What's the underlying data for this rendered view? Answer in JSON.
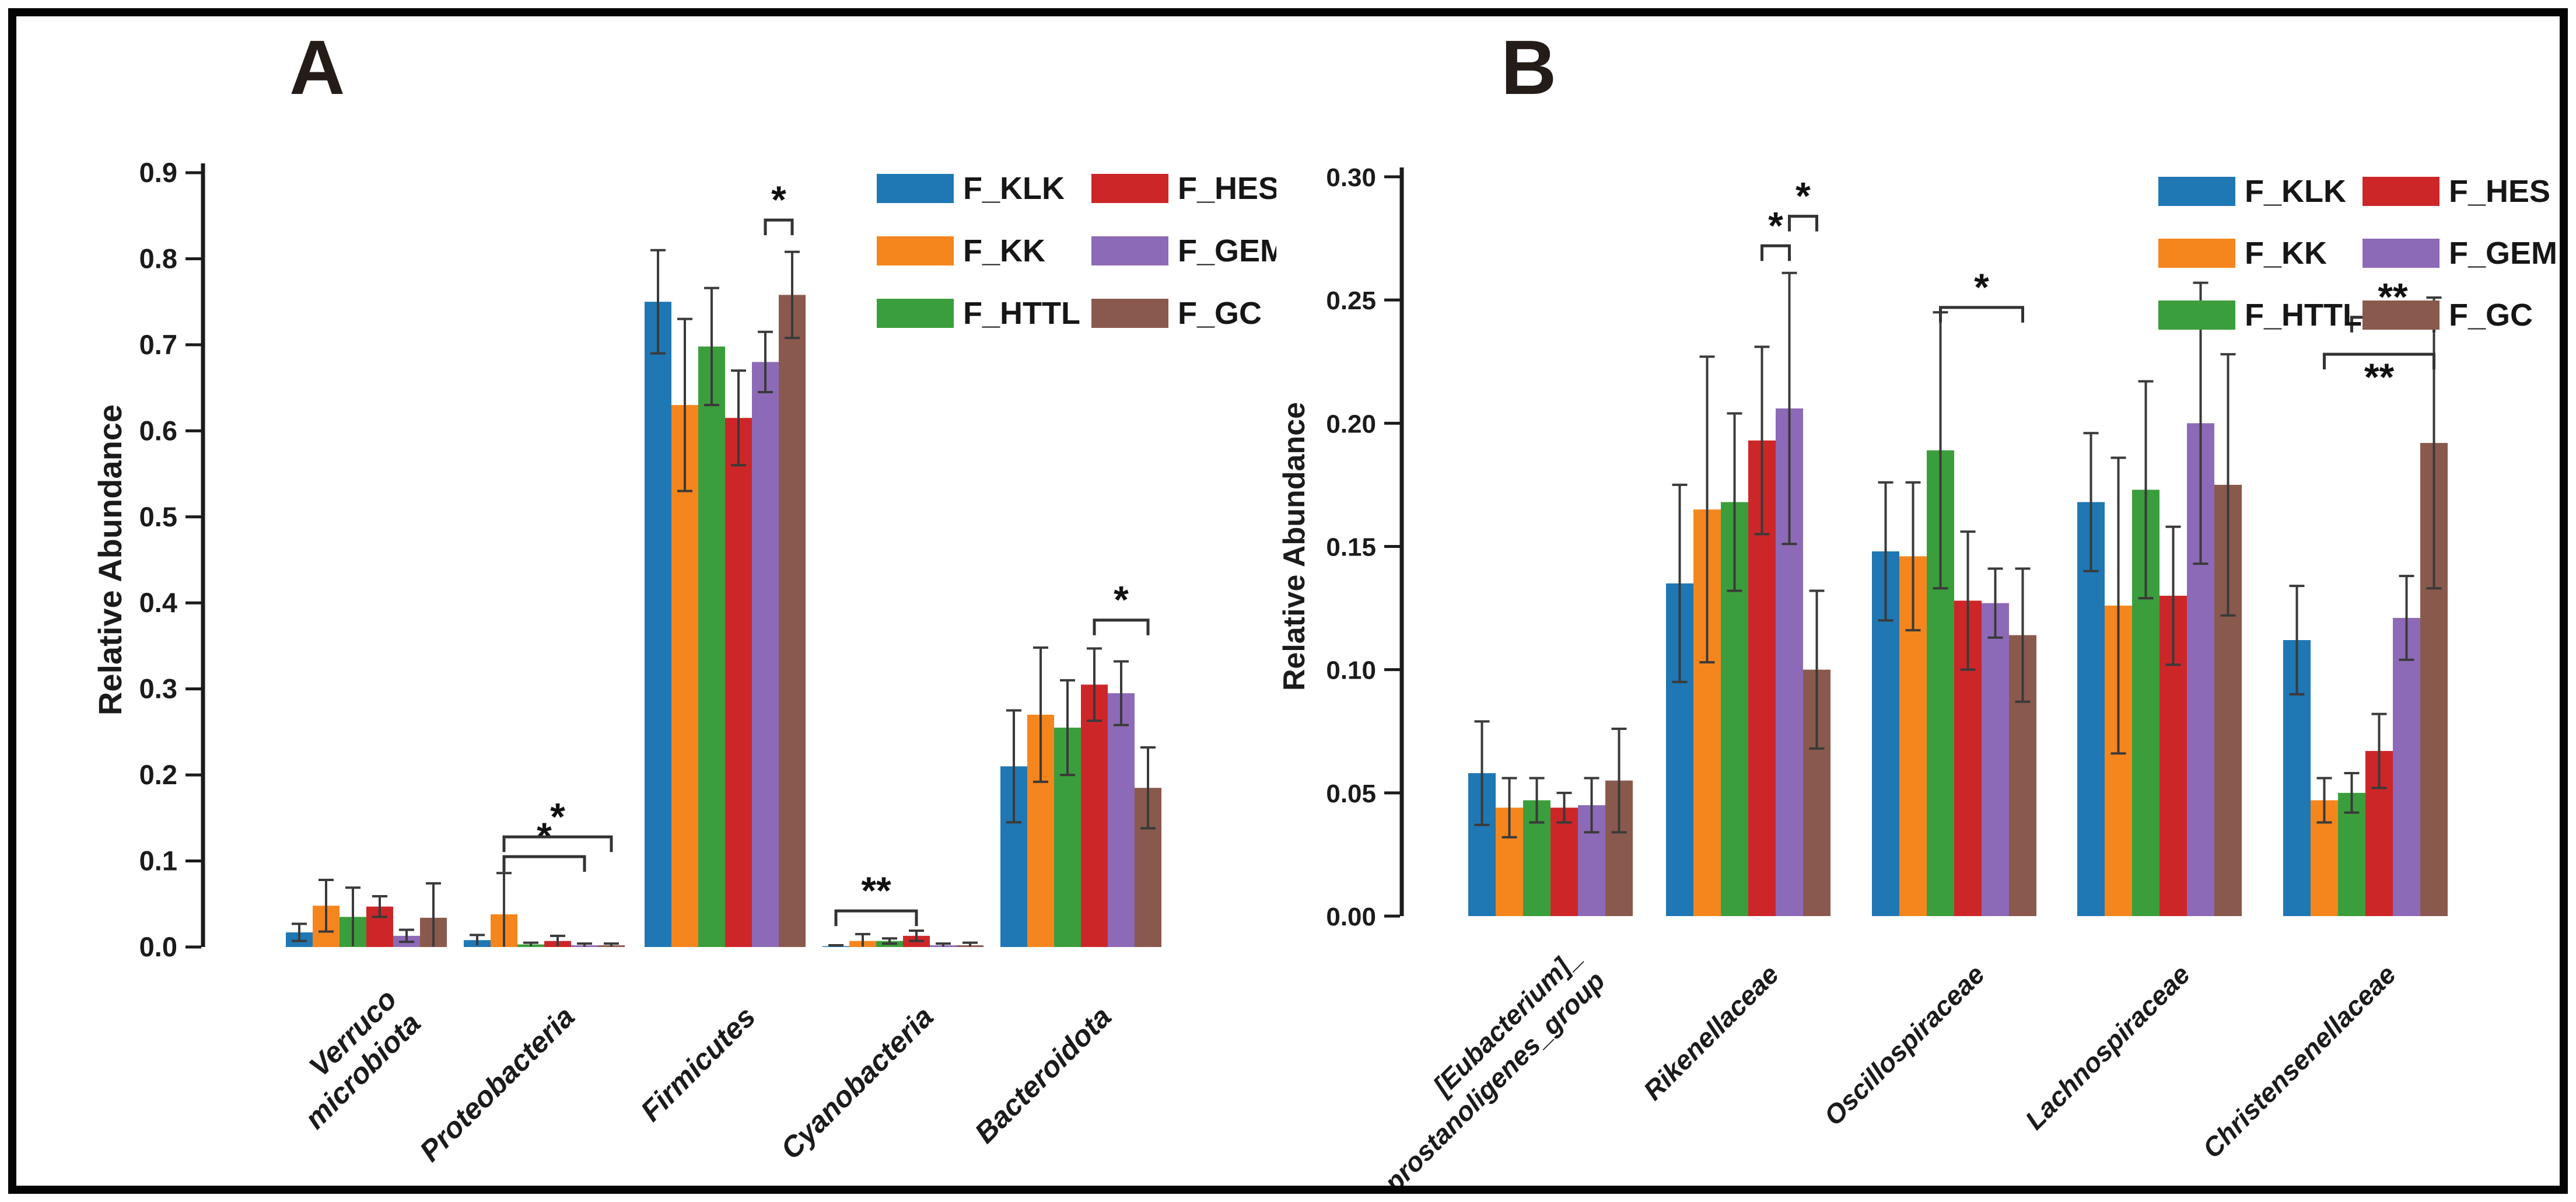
{
  "figure": {
    "background": "#ffffff",
    "border_color": "#050505"
  },
  "legend": {
    "entries": [
      {
        "label": "F_KLK",
        "color": "#1f77b4"
      },
      {
        "label": "F_KK",
        "color": "#f5861d"
      },
      {
        "label": "F_HTTL",
        "color": "#3b9e3c"
      },
      {
        "label": "F_HES",
        "color": "#cd2628"
      },
      {
        "label": "F_GEM",
        "color": "#8d6ab7"
      },
      {
        "label": "F_GC",
        "color": "#8a594d"
      }
    ]
  },
  "chart_data": [
    {
      "type": "bar",
      "panel_label": "A",
      "title": "",
      "xlabel": "",
      "ylabel": "Relative Abundance",
      "ylim": [
        0,
        0.9
      ],
      "ytick_step": 0.1,
      "ytick_decimals": 1,
      "grid": false,
      "legend_position": "top-right",
      "categories": [
        "Verruco\nmicrobiota",
        "Proteobacteria",
        "Firmicutes",
        "Cyanobacteria",
        "Bacteroidota"
      ],
      "series": [
        {
          "name": "F_KLK",
          "values": [
            0.017,
            0.008,
            0.75,
            0.001,
            0.21
          ],
          "errors": [
            0.01,
            0.006,
            0.06,
            0.001,
            0.065
          ]
        },
        {
          "name": "F_KK",
          "values": [
            0.048,
            0.038,
            0.63,
            0.007,
            0.27
          ],
          "errors": [
            0.03,
            0.048,
            0.1,
            0.008,
            0.078
          ]
        },
        {
          "name": "F_HTTL",
          "values": [
            0.035,
            0.003,
            0.698,
            0.007,
            0.255
          ],
          "errors": [
            0.034,
            0.002,
            0.068,
            0.003,
            0.055
          ]
        },
        {
          "name": "F_HES",
          "values": [
            0.047,
            0.007,
            0.615,
            0.013,
            0.305
          ],
          "errors": [
            0.012,
            0.006,
            0.055,
            0.006,
            0.042
          ]
        },
        {
          "name": "F_GEM",
          "values": [
            0.013,
            0.002,
            0.68,
            0.002,
            0.295
          ],
          "errors": [
            0.007,
            0.002,
            0.035,
            0.002,
            0.037
          ]
        },
        {
          "name": "F_GC",
          "values": [
            0.034,
            0.002,
            0.758,
            0.002,
            0.185
          ],
          "errors": [
            0.04,
            0.002,
            0.05,
            0.003,
            0.047
          ]
        }
      ],
      "significance": [
        {
          "category": "Proteobacteria",
          "from": "F_KK",
          "to": "F_GEM",
          "y": 0.105,
          "label": "*"
        },
        {
          "category": "Proteobacteria",
          "from": "F_KK",
          "to": "F_GC",
          "y": 0.128,
          "label": "*"
        },
        {
          "category": "Firmicutes",
          "from": "F_GEM",
          "to": "F_GC",
          "y": 0.845,
          "label": "*"
        },
        {
          "category": "Cyanobacteria",
          "from": "F_KLK",
          "to": "F_HES",
          "y": 0.042,
          "label": "**"
        },
        {
          "category": "Bacteroidota",
          "from": "F_HES",
          "to": "F_GC",
          "y": 0.38,
          "label": "*"
        }
      ]
    },
    {
      "type": "bar",
      "panel_label": "B",
      "title": "",
      "xlabel": "",
      "ylabel": "Relative Abundance",
      "ylim": [
        0,
        0.3
      ],
      "ytick_step": 0.05,
      "ytick_decimals": 2,
      "grid": false,
      "legend_position": "top-right",
      "categories": [
        "[Eubacterium]_\ncoprostanoligenes_group",
        "Rikenellaceae",
        "Oscillospiraceae",
        "Lachnospiraceae",
        "Christensenellaceae"
      ],
      "series": [
        {
          "name": "F_KLK",
          "values": [
            0.058,
            0.135,
            0.148,
            0.168,
            0.112
          ],
          "errors": [
            0.021,
            0.04,
            0.028,
            0.028,
            0.022
          ]
        },
        {
          "name": "F_KK",
          "values": [
            0.044,
            0.165,
            0.146,
            0.126,
            0.047
          ],
          "errors": [
            0.012,
            0.062,
            0.03,
            0.06,
            0.009
          ]
        },
        {
          "name": "F_HTTL",
          "values": [
            0.047,
            0.168,
            0.189,
            0.173,
            0.05
          ],
          "errors": [
            0.009,
            0.036,
            0.056,
            0.044,
            0.008
          ]
        },
        {
          "name": "F_HES",
          "values": [
            0.044,
            0.193,
            0.128,
            0.13,
            0.067
          ],
          "errors": [
            0.006,
            0.038,
            0.028,
            0.028,
            0.015
          ]
        },
        {
          "name": "F_GEM",
          "values": [
            0.045,
            0.206,
            0.127,
            0.2,
            0.121
          ],
          "errors": [
            0.011,
            0.055,
            0.014,
            0.057,
            0.017
          ]
        },
        {
          "name": "F_GC",
          "values": [
            0.055,
            0.1,
            0.114,
            0.175,
            0.192
          ],
          "errors": [
            0.021,
            0.032,
            0.027,
            0.053,
            0.059
          ]
        }
      ],
      "significance": [
        {
          "category": "Rikenellaceae",
          "from": "F_HES",
          "to": "F_GEM",
          "y": 0.272,
          "label": "*"
        },
        {
          "category": "Rikenellaceae",
          "from": "F_GEM",
          "to": "F_GC",
          "y": 0.284,
          "label": "*"
        },
        {
          "category": "Oscillospiraceae",
          "from": "F_HTTL",
          "to": "F_GC",
          "y": 0.247,
          "label": "*"
        },
        {
          "category": "Christensenellaceae",
          "from": "F_KK",
          "to": "F_GC",
          "y": 0.228,
          "label": "**",
          "label_below": true
        },
        {
          "category": "Christensenellaceae",
          "from": "F_HTTL",
          "to": "F_GC",
          "y": 0.243,
          "label": "**"
        }
      ]
    }
  ]
}
